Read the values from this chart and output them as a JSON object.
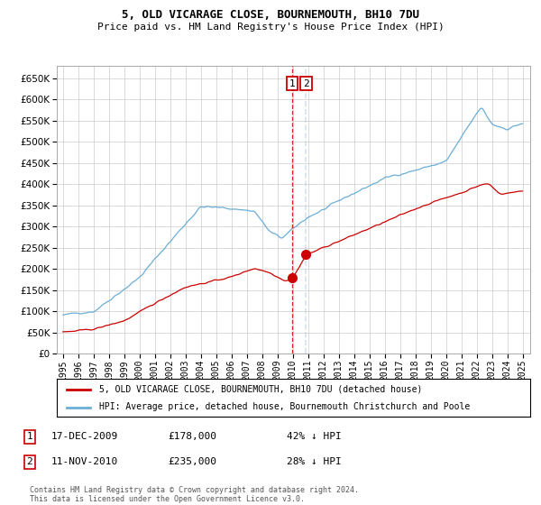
{
  "title": "5, OLD VICARAGE CLOSE, BOURNEMOUTH, BH10 7DU",
  "subtitle": "Price paid vs. HM Land Registry's House Price Index (HPI)",
  "legend_line1": "5, OLD VICARAGE CLOSE, BOURNEMOUTH, BH10 7DU (detached house)",
  "legend_line2": "HPI: Average price, detached house, Bournemouth Christchurch and Poole",
  "annotation1_date": "17-DEC-2009",
  "annotation1_price": "£178,000",
  "annotation1_hpi": "42% ↓ HPI",
  "annotation2_date": "11-NOV-2010",
  "annotation2_price": "£235,000",
  "annotation2_hpi": "28% ↓ HPI",
  "footnote1": "Contains HM Land Registry data © Crown copyright and database right 2024.",
  "footnote2": "This data is licensed under the Open Government Licence v3.0.",
  "hpi_color": "#6baed6",
  "property_color": "#cc0000",
  "vline1_color": "#cc0000",
  "vline2_color": "#aac4e0",
  "grid_color": "#cccccc",
  "bg_color": "#ffffff",
  "ylim": [
    0,
    680000
  ],
  "yticks": [
    0,
    50000,
    100000,
    150000,
    200000,
    250000,
    300000,
    350000,
    400000,
    450000,
    500000,
    550000,
    600000,
    650000
  ],
  "sale1_year": 2009.96,
  "sale1_value": 178000,
  "sale2_year": 2010.87,
  "sale2_value": 235000,
  "xlim_left": 1994.6,
  "xlim_right": 2025.5
}
